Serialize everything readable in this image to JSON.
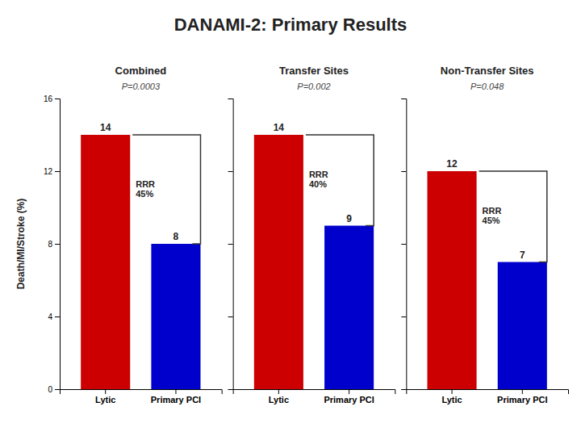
{
  "title": "DANAMI-2: Primary Results",
  "chart_data": [
    {
      "type": "bar",
      "title": "Combined",
      "subtitle": "P=0.0003",
      "categories": [
        "Lytic",
        "Primary PCI"
      ],
      "values": [
        14,
        8
      ],
      "colors": [
        "#cc0000",
        "#0000cc"
      ],
      "data_labels": true,
      "annotations": [
        "RRR\n45%"
      ],
      "ylabel": "Death/MI/Stroke (%)",
      "ylim": [
        0,
        16
      ],
      "yticks": [
        0,
        4,
        8,
        12,
        16
      ]
    },
    {
      "type": "bar",
      "title": "Transfer Sites",
      "subtitle": "P=0.002",
      "categories": [
        "Lytic",
        "Primary PCI"
      ],
      "values": [
        14,
        9
      ],
      "colors": [
        "#cc0000",
        "#0000cc"
      ],
      "data_labels": true,
      "annotations": [
        "RRR\n40%"
      ],
      "ylim": [
        0,
        16
      ],
      "yticks": [
        0,
        4,
        8,
        12,
        16
      ],
      "tick_labels": "x"
    },
    {
      "type": "bar",
      "title": "Non-Transfer Sites",
      "subtitle": "P=0.048",
      "categories": [
        "Lytic",
        "Primary PCI"
      ],
      "values": [
        12,
        7
      ],
      "colors": [
        "#cc0000",
        "#0000cc"
      ],
      "data_labels": true,
      "annotations": [
        "RRR\n45%"
      ],
      "ylim": [
        0,
        16
      ],
      "yticks": [
        0,
        4,
        8,
        12,
        16
      ],
      "tick_labels": "x"
    }
  ]
}
